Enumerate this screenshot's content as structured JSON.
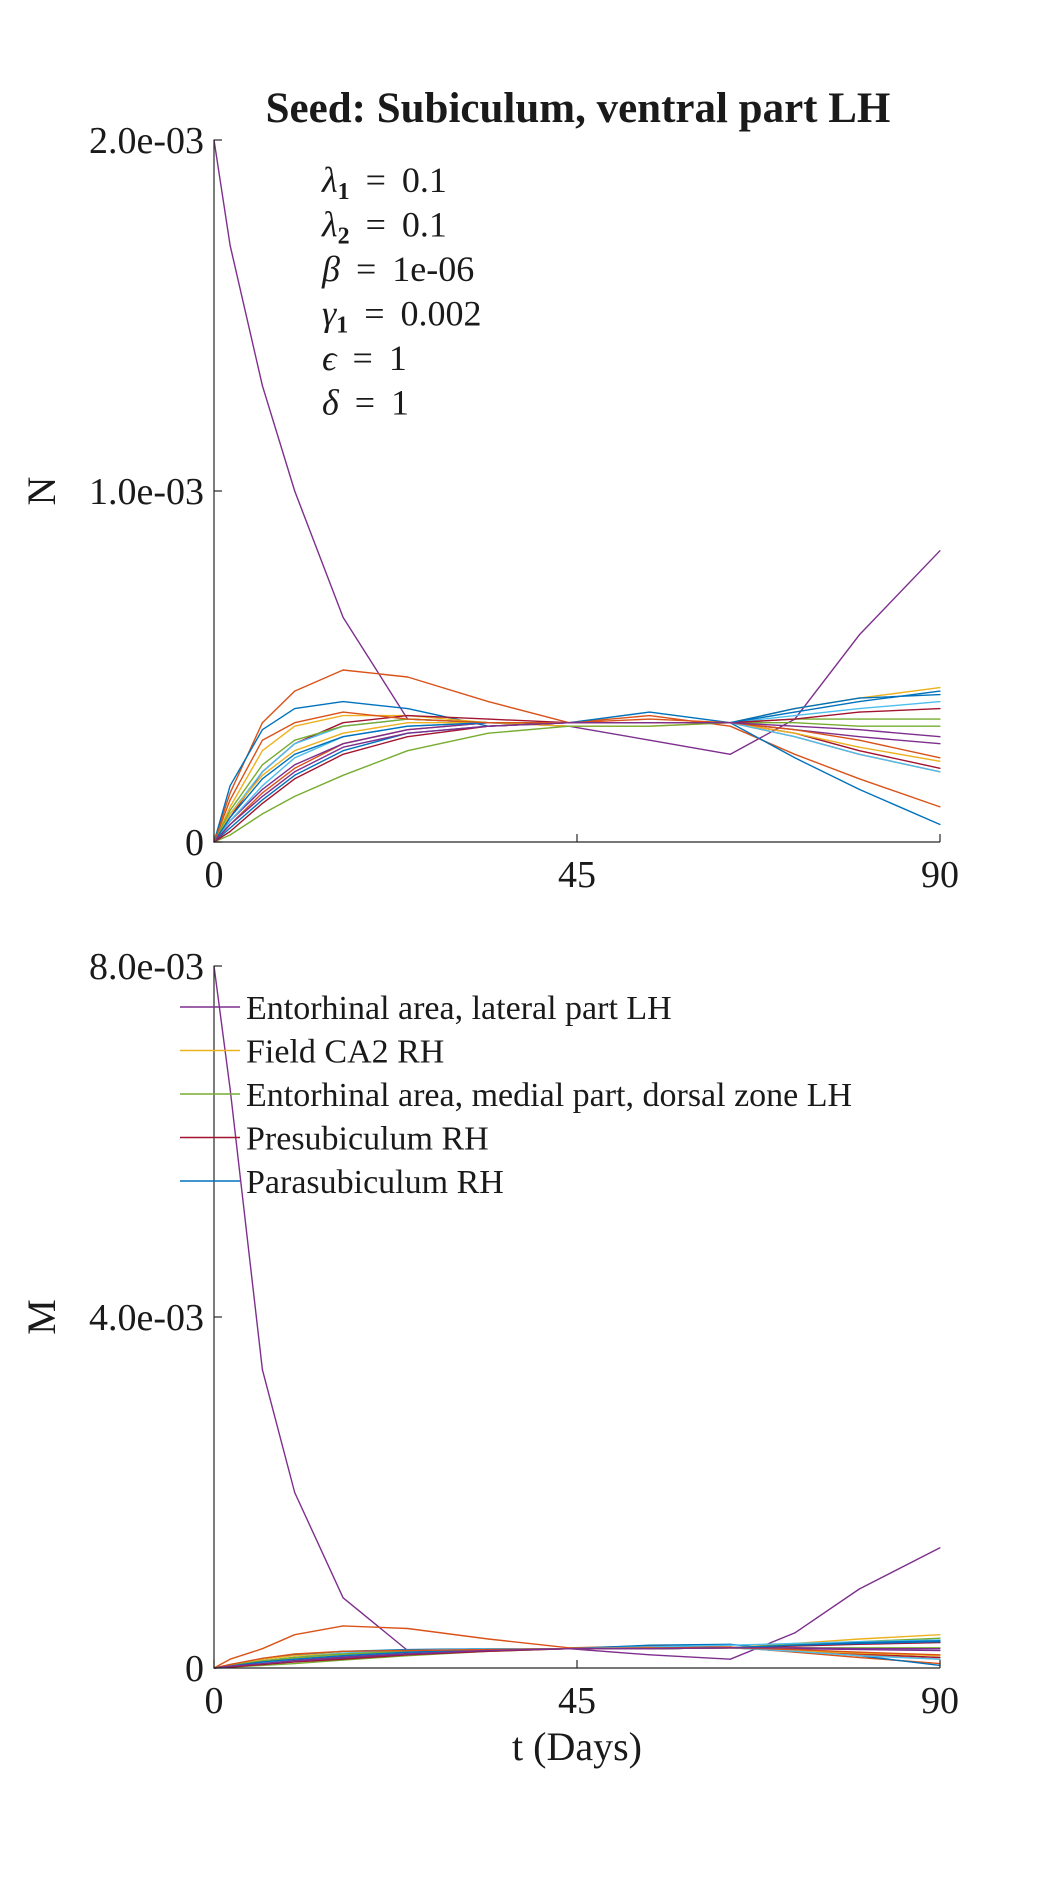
{
  "chart_data": [
    {
      "type": "line",
      "title": "Seed: Subiculum, ventral part LH",
      "xlabel": "",
      "ylabel": "N",
      "xlim": [
        0,
        90
      ],
      "ylim": [
        0,
        0.002
      ],
      "x_ticks": [
        0,
        45,
        90
      ],
      "x_tick_labels": [
        "0",
        "45",
        "90"
      ],
      "y_ticks": [
        0,
        0.001,
        0.002
      ],
      "y_tick_labels": [
        "0",
        "1.0e-03",
        "2.0e-03"
      ],
      "grid": false,
      "legend": "none",
      "params": [
        {
          "sym": "λ",
          "sub": "1",
          "value": "0.1"
        },
        {
          "sym": "λ",
          "sub": "2",
          "value": "0.1"
        },
        {
          "sym": "β",
          "sub": "",
          "value": "1e-06"
        },
        {
          "sym": "γ",
          "sub": "1",
          "value": "0.002"
        },
        {
          "sym": "ϵ",
          "sub": "",
          "value": "1"
        },
        {
          "sym": "δ",
          "sub": "",
          "value": "1"
        }
      ],
      "x": [
        0,
        2,
        6,
        10,
        16,
        24,
        34,
        44,
        54,
        64,
        72,
        80,
        90
      ],
      "series": [
        {
          "color": "#7E2F8E",
          "values": [
            0.002,
            0.0017,
            0.0013,
            0.001,
            0.00064,
            0.00035,
            0.00034,
            0.00033,
            0.00029,
            0.00025,
            0.00035,
            0.00059,
            0.00083
          ]
        },
        {
          "color": "#D95319",
          "values": [
            0,
            0.00014,
            0.00034,
            0.00043,
            0.00049,
            0.00047,
            0.0004,
            0.00034,
            0.00036,
            0.00033,
            0.00025,
            0.00018,
            0.0001
          ]
        },
        {
          "color": "#0072BD",
          "values": [
            0,
            0.00016,
            0.00032,
            0.00038,
            0.0004,
            0.00038,
            0.00033,
            0.00034,
            0.00037,
            0.00034,
            0.00024,
            0.00015,
            5e-05
          ]
        },
        {
          "color": "#EDB120",
          "values": [
            0,
            0.0001,
            0.00026,
            0.00033,
            0.00036,
            0.00036,
            0.00034,
            0.00033,
            0.00033,
            0.00034,
            0.00038,
            0.00041,
            0.00044
          ]
        },
        {
          "color": "#77AC30",
          "values": [
            0,
            2e-05,
            8e-05,
            0.00013,
            0.00019,
            0.00026,
            0.00031,
            0.00033,
            0.00033,
            0.00034,
            0.00035,
            0.00035,
            0.00035
          ]
        },
        {
          "color": "#A2142F",
          "values": [
            0,
            7e-05,
            0.0002,
            0.00028,
            0.00034,
            0.00036,
            0.00035,
            0.00034,
            0.00034,
            0.00034,
            0.00031,
            0.00026,
            0.00021
          ]
        },
        {
          "color": "#4DBEEE",
          "values": [
            0,
            8e-05,
            0.0002,
            0.00028,
            0.00033,
            0.00035,
            0.00034,
            0.00034,
            0.00034,
            0.00034,
            0.00036,
            0.00038,
            0.0004
          ]
        },
        {
          "color": "#0072BD",
          "values": [
            0,
            4e-05,
            0.00012,
            0.00019,
            0.00026,
            0.00031,
            0.00033,
            0.00034,
            0.00034,
            0.00034,
            0.00037,
            0.0004,
            0.00043
          ]
        },
        {
          "color": "#D95319",
          "values": [
            0,
            5e-05,
            0.00014,
            0.00021,
            0.00028,
            0.00032,
            0.00034,
            0.00034,
            0.00035,
            0.00034,
            0.0003,
            0.00025,
            0.0002
          ]
        },
        {
          "color": "#EDB120",
          "values": [
            0,
            8e-05,
            0.00019,
            0.00026,
            0.00031,
            0.00034,
            0.00034,
            0.00034,
            0.00034,
            0.00034,
            0.00031,
            0.00027,
            0.00023
          ]
        },
        {
          "color": "#7E2F8E",
          "values": [
            0,
            6e-05,
            0.00015,
            0.00022,
            0.00028,
            0.00032,
            0.00034,
            0.00034,
            0.00034,
            0.00034,
            0.00032,
            0.0003,
            0.00028
          ]
        },
        {
          "color": "#77AC30",
          "values": [
            0,
            9e-05,
            0.00022,
            0.00029,
            0.00033,
            0.00035,
            0.00034,
            0.00034,
            0.00034,
            0.00034,
            0.00034,
            0.00033,
            0.00033
          ]
        },
        {
          "color": "#4DBEEE",
          "values": [
            0,
            6e-05,
            0.00016,
            0.00024,
            0.0003,
            0.00033,
            0.00034,
            0.00034,
            0.00034,
            0.00034,
            0.0003,
            0.00025,
            0.0002
          ]
        },
        {
          "color": "#A2142F",
          "values": [
            0,
            3e-05,
            0.00011,
            0.00018,
            0.00025,
            0.0003,
            0.00033,
            0.00034,
            0.00034,
            0.00034,
            0.00035,
            0.00037,
            0.00038
          ]
        },
        {
          "color": "#0072BD",
          "values": [
            0,
            7e-05,
            0.00018,
            0.00025,
            0.0003,
            0.00033,
            0.00034,
            0.00034,
            0.00034,
            0.00034,
            0.00038,
            0.00041,
            0.00042
          ]
        },
        {
          "color": "#D95319",
          "values": [
            0,
            0.00012,
            0.00029,
            0.00034,
            0.00037,
            0.00035,
            0.00034,
            0.00034,
            0.00034,
            0.00034,
            0.00032,
            0.00029,
            0.00024
          ]
        },
        {
          "color": "#7E2F8E",
          "values": [
            0,
            5e-05,
            0.00013,
            0.0002,
            0.00027,
            0.00031,
            0.00033,
            0.00034,
            0.00034,
            0.00034,
            0.00033,
            0.00032,
            0.0003
          ]
        }
      ]
    },
    {
      "type": "line",
      "title": "",
      "xlabel": "t (Days)",
      "ylabel": "M",
      "xlim": [
        0,
        90
      ],
      "ylim": [
        0,
        0.008
      ],
      "x_ticks": [
        0,
        45,
        90
      ],
      "x_tick_labels": [
        "0",
        "45",
        "90"
      ],
      "y_ticks": [
        0,
        0.004,
        0.008
      ],
      "y_tick_labels": [
        "0",
        "4.0e-03",
        "8.0e-03"
      ],
      "grid": false,
      "legend": "top-left",
      "legend_entries": [
        {
          "label": "Entorhinal area, lateral part LH",
          "color": "#7E2F8E"
        },
        {
          "label": "Field CA2 RH",
          "color": "#EDB120"
        },
        {
          "label": "Entorhinal area, medial part, dorsal zone LH",
          "color": "#77AC30"
        },
        {
          "label": "Presubiculum RH",
          "color": "#A2142F"
        },
        {
          "label": "Parasubiculum RH",
          "color": "#0072BD"
        }
      ],
      "x": [
        0,
        2,
        6,
        10,
        16,
        24,
        34,
        44,
        54,
        64,
        72,
        80,
        90
      ],
      "series": [
        {
          "color": "#7E2F8E",
          "values": [
            0.008,
            0.0066,
            0.0034,
            0.002,
            0.0008,
            0.0002,
            0.00022,
            0.00022,
            0.00015,
            0.0001,
            0.0004,
            0.0009,
            0.00137
          ]
        },
        {
          "color": "#D95319",
          "values": [
            0,
            0.0001,
            0.00022,
            0.00038,
            0.00048,
            0.00045,
            0.00033,
            0.00023,
            0.00025,
            0.00024,
            0.00018,
            0.00012,
            5e-05
          ]
        },
        {
          "color": "#0072BD",
          "values": [
            0,
            4e-05,
            0.0001,
            0.00015,
            0.00019,
            0.00021,
            0.00022,
            0.00022,
            0.00026,
            0.00027,
            0.0002,
            0.00014,
            3e-05
          ]
        },
        {
          "color": "#EDB120",
          "values": [
            0,
            4e-05,
            0.0001,
            0.00014,
            0.00017,
            0.00019,
            0.0002,
            0.00022,
            0.00023,
            0.00023,
            0.00028,
            0.00033,
            0.00038
          ]
        },
        {
          "color": "#77AC30",
          "values": [
            0,
            1e-05,
            3e-05,
            5e-05,
            9e-05,
            0.00014,
            0.00019,
            0.00022,
            0.00022,
            0.00023,
            0.00027,
            0.0003,
            0.00034
          ]
        },
        {
          "color": "#A2142F",
          "values": [
            0,
            3e-05,
            8e-05,
            0.00012,
            0.00016,
            0.00019,
            0.00021,
            0.00022,
            0.00023,
            0.00023,
            0.0002,
            0.00016,
            0.00012
          ]
        },
        {
          "color": "#4DBEEE",
          "values": [
            0,
            3e-05,
            8e-05,
            0.00012,
            0.00017,
            0.0002,
            0.00022,
            0.00022,
            0.00024,
            0.00026,
            0.00028,
            0.0003,
            0.00032
          ]
        },
        {
          "color": "#0072BD",
          "values": [
            0,
            2e-05,
            5e-05,
            8e-05,
            0.00011,
            0.00016,
            0.0002,
            0.00022,
            0.00022,
            0.00023,
            0.00026,
            0.00029,
            0.00031
          ]
        },
        {
          "color": "#D95319",
          "values": [
            0,
            2e-05,
            6e-05,
            0.0001,
            0.00014,
            0.00018,
            0.00021,
            0.00022,
            0.00023,
            0.00023,
            0.00019,
            0.00015,
            0.0001
          ]
        },
        {
          "color": "#EDB120",
          "values": [
            0,
            3e-05,
            8e-05,
            0.00011,
            0.00015,
            0.00019,
            0.00021,
            0.00022,
            0.00022,
            0.00023,
            0.0002,
            0.00017,
            0.00014
          ]
        },
        {
          "color": "#7E2F8E",
          "values": [
            0,
            2e-05,
            6e-05,
            9e-05,
            0.00013,
            0.00017,
            0.0002,
            0.00022,
            0.00022,
            0.00023,
            0.00022,
            0.00021,
            0.0002
          ]
        },
        {
          "color": "#77AC30",
          "values": [
            0,
            3e-05,
            8e-05,
            0.00012,
            0.00016,
            0.00019,
            0.00021,
            0.00022,
            0.00022,
            0.00023,
            0.00023,
            0.00023,
            0.00023
          ]
        },
        {
          "color": "#4DBEEE",
          "values": [
            0,
            2e-05,
            6e-05,
            0.0001,
            0.00014,
            0.00018,
            0.00021,
            0.00022,
            0.00022,
            0.00023,
            0.00019,
            0.00014,
            0.0001
          ]
        },
        {
          "color": "#A2142F",
          "values": [
            0,
            1e-05,
            4e-05,
            7e-05,
            0.0001,
            0.00015,
            0.00019,
            0.00022,
            0.00022,
            0.00023,
            0.00025,
            0.00027,
            0.00029
          ]
        },
        {
          "color": "#0072BD",
          "values": [
            0,
            2e-05,
            7e-05,
            0.0001,
            0.00014,
            0.00018,
            0.00021,
            0.00022,
            0.00022,
            0.00023,
            0.00026,
            0.00028,
            0.0003
          ]
        },
        {
          "color": "#D95319",
          "values": [
            0,
            4e-05,
            0.00011,
            0.00016,
            0.00019,
            0.0002,
            0.00021,
            0.00022,
            0.00022,
            0.00023,
            0.00021,
            0.00018,
            0.00015
          ]
        },
        {
          "color": "#7E2F8E",
          "values": [
            0,
            2e-05,
            5e-05,
            8e-05,
            0.00012,
            0.00016,
            0.0002,
            0.00022,
            0.00022,
            0.00023,
            0.00023,
            0.00022,
            0.00022
          ]
        }
      ]
    }
  ]
}
